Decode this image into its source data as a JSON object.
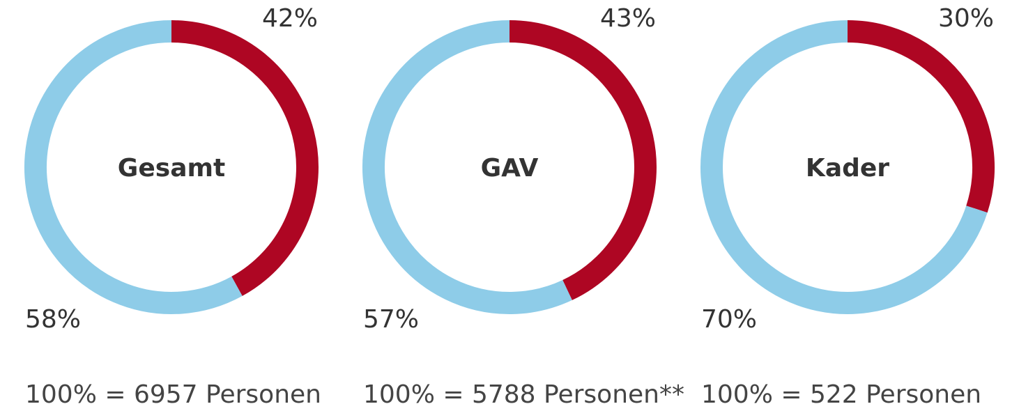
{
  "colors": {
    "primary": "#ae0623",
    "secondary": "#8ecce8",
    "text": "#333333"
  },
  "chart_data": [
    {
      "type": "pie",
      "title": "Gesamt",
      "slices": [
        {
          "value": 42,
          "label": "42%",
          "color": "#ae0623"
        },
        {
          "value": 58,
          "label": "58%",
          "color": "#8ecce8"
        }
      ],
      "total_label": "100% = 6957 Personen"
    },
    {
      "type": "pie",
      "title": "GAV",
      "slices": [
        {
          "value": 43,
          "label": "43%",
          "color": "#ae0623"
        },
        {
          "value": 57,
          "label": "57%",
          "color": "#8ecce8"
        }
      ],
      "total_label": "100% = 5788 Personen**"
    },
    {
      "type": "pie",
      "title": "Kader",
      "slices": [
        {
          "value": 30,
          "label": "30%",
          "color": "#ae0623"
        },
        {
          "value": 70,
          "label": "70%",
          "color": "#8ecce8"
        }
      ],
      "total_label": "100% = 522 Personen"
    }
  ]
}
